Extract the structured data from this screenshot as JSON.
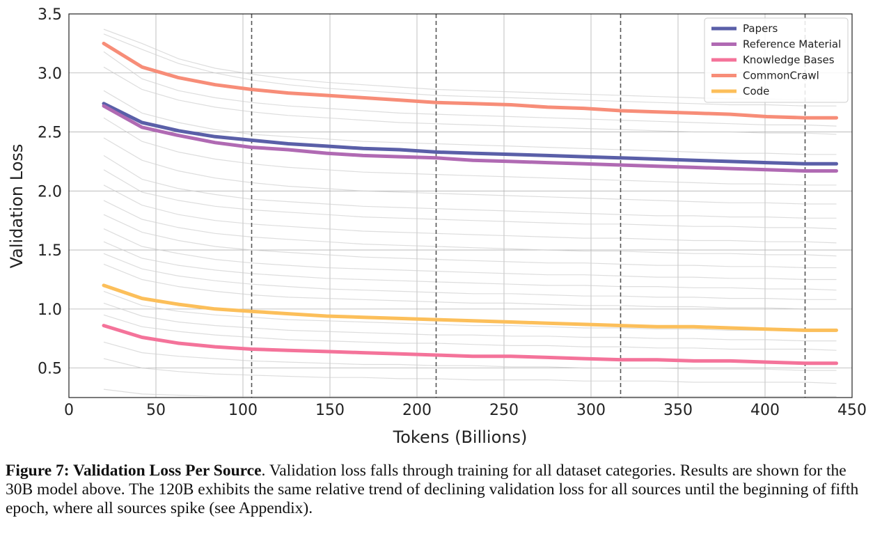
{
  "chart_data": {
    "type": "line",
    "xlabel": "Tokens (Billions)",
    "ylabel": "Validation Loss",
    "xlim": [
      0,
      450
    ],
    "ylim": [
      0.25,
      3.5
    ],
    "xticks": [
      "0",
      "50",
      "100",
      "150",
      "200",
      "250",
      "300",
      "350",
      "400",
      "450"
    ],
    "yticks": [
      "0.5",
      "1.0",
      "1.5",
      "2.0",
      "2.5",
      "3.0",
      "3.5"
    ],
    "grid": true,
    "legend_position": "top-right",
    "epoch_boundaries": [
      105,
      211,
      317,
      423
    ],
    "x": [
      20,
      42,
      63,
      84,
      105,
      126,
      148,
      169,
      190,
      211,
      232,
      254,
      275,
      296,
      317,
      338,
      359,
      380,
      401,
      423,
      441
    ],
    "series": [
      {
        "name": "Papers",
        "color": "#5a5fa8",
        "values": [
          2.74,
          2.58,
          2.51,
          2.46,
          2.43,
          2.4,
          2.38,
          2.36,
          2.35,
          2.33,
          2.32,
          2.31,
          2.3,
          2.29,
          2.28,
          2.27,
          2.26,
          2.25,
          2.24,
          2.23,
          2.23
        ]
      },
      {
        "name": "Reference Material",
        "color": "#b06ab3",
        "values": [
          2.72,
          2.54,
          2.47,
          2.41,
          2.37,
          2.35,
          2.32,
          2.3,
          2.29,
          2.28,
          2.26,
          2.25,
          2.24,
          2.23,
          2.22,
          2.21,
          2.2,
          2.19,
          2.18,
          2.17,
          2.17
        ]
      },
      {
        "name": "Knowledge Bases",
        "color": "#f4739a",
        "values": [
          0.86,
          0.76,
          0.71,
          0.68,
          0.66,
          0.65,
          0.64,
          0.63,
          0.62,
          0.61,
          0.6,
          0.6,
          0.59,
          0.58,
          0.57,
          0.57,
          0.56,
          0.56,
          0.55,
          0.54,
          0.54
        ]
      },
      {
        "name": "CommonCrawl",
        "color": "#f78d78",
        "values": [
          3.25,
          3.05,
          2.96,
          2.9,
          2.86,
          2.83,
          2.81,
          2.79,
          2.77,
          2.75,
          2.74,
          2.73,
          2.71,
          2.7,
          2.68,
          2.67,
          2.66,
          2.65,
          2.63,
          2.62,
          2.62
        ]
      },
      {
        "name": "Code",
        "color": "#fcbf5a",
        "values": [
          1.2,
          1.09,
          1.04,
          1.0,
          0.98,
          0.96,
          0.94,
          0.93,
          0.92,
          0.91,
          0.9,
          0.89,
          0.88,
          0.87,
          0.86,
          0.85,
          0.85,
          0.84,
          0.83,
          0.82,
          0.82
        ]
      }
    ],
    "background_series": [
      [
        3.37,
        3.25,
        3.12,
        3.04,
        2.99,
        2.95,
        2.92,
        2.9,
        2.88,
        2.86,
        2.85,
        2.84,
        2.83,
        2.82,
        2.81,
        2.8,
        2.79,
        2.78,
        2.78,
        2.77,
        2.77
      ],
      [
        3.33,
        3.2,
        3.08,
        3.0,
        2.94,
        2.9,
        2.87,
        2.85,
        2.83,
        2.81,
        2.8,
        2.79,
        2.78,
        2.77,
        2.76,
        2.75,
        2.74,
        2.73,
        2.73,
        2.72,
        2.72
      ],
      [
        3.18,
        2.95,
        2.85,
        2.79,
        2.75,
        2.72,
        2.7,
        2.68,
        2.66,
        2.65,
        2.64,
        2.63,
        2.62,
        2.61,
        2.6,
        2.59,
        2.58,
        2.57,
        2.56,
        2.56,
        2.55
      ],
      [
        3.05,
        2.86,
        2.77,
        2.71,
        2.67,
        2.64,
        2.62,
        2.6,
        2.58,
        2.57,
        2.56,
        2.55,
        2.54,
        2.53,
        2.52,
        2.51,
        2.5,
        2.5,
        2.49,
        2.49,
        2.48
      ],
      [
        2.85,
        2.66,
        2.58,
        2.52,
        2.48,
        2.46,
        2.44,
        2.42,
        2.41,
        2.4,
        2.39,
        2.38,
        2.37,
        2.36,
        2.35,
        2.34,
        2.33,
        2.32,
        2.32,
        2.31,
        2.31
      ],
      [
        2.62,
        2.42,
        2.33,
        2.27,
        2.23,
        2.2,
        2.18,
        2.16,
        2.15,
        2.14,
        2.13,
        2.12,
        2.11,
        2.1,
        2.09,
        2.08,
        2.07,
        2.06,
        2.06,
        2.05,
        2.05
      ],
      [
        2.45,
        2.26,
        2.17,
        2.11,
        2.07,
        2.04,
        2.02,
        2.0,
        1.99,
        1.98,
        1.97,
        1.96,
        1.95,
        1.94,
        1.93,
        1.92,
        1.91,
        1.9,
        1.9,
        1.89,
        1.89
      ],
      [
        2.3,
        2.1,
        2.02,
        1.97,
        1.93,
        1.91,
        1.89,
        1.87,
        1.86,
        1.85,
        1.84,
        1.83,
        1.82,
        1.81,
        1.8,
        1.79,
        1.79,
        1.78,
        1.78,
        1.77,
        1.77
      ],
      [
        2.18,
        1.99,
        1.92,
        1.87,
        1.84,
        1.82,
        1.8,
        1.78,
        1.77,
        1.76,
        1.75,
        1.74,
        1.73,
        1.72,
        1.72,
        1.71,
        1.7,
        1.7,
        1.69,
        1.69,
        1.68
      ],
      [
        2.05,
        1.88,
        1.8,
        1.75,
        1.72,
        1.7,
        1.68,
        1.66,
        1.65,
        1.64,
        1.63,
        1.62,
        1.61,
        1.6,
        1.6,
        1.59,
        1.58,
        1.58,
        1.57,
        1.57,
        1.56
      ],
      [
        1.92,
        1.76,
        1.69,
        1.64,
        1.61,
        1.59,
        1.57,
        1.55,
        1.54,
        1.53,
        1.52,
        1.51,
        1.5,
        1.49,
        1.49,
        1.48,
        1.47,
        1.47,
        1.46,
        1.46,
        1.45
      ],
      [
        1.8,
        1.65,
        1.58,
        1.53,
        1.5,
        1.48,
        1.46,
        1.44,
        1.43,
        1.42,
        1.41,
        1.4,
        1.39,
        1.39,
        1.38,
        1.37,
        1.37,
        1.36,
        1.36,
        1.35,
        1.35
      ],
      [
        1.68,
        1.53,
        1.47,
        1.42,
        1.39,
        1.37,
        1.35,
        1.34,
        1.33,
        1.32,
        1.31,
        1.3,
        1.29,
        1.29,
        1.28,
        1.27,
        1.27,
        1.26,
        1.26,
        1.25,
        1.25
      ],
      [
        1.57,
        1.43,
        1.37,
        1.33,
        1.3,
        1.28,
        1.26,
        1.25,
        1.24,
        1.23,
        1.22,
        1.21,
        1.2,
        1.2,
        1.19,
        1.19,
        1.18,
        1.18,
        1.17,
        1.17,
        1.16
      ],
      [
        1.47,
        1.34,
        1.28,
        1.24,
        1.21,
        1.19,
        1.17,
        1.16,
        1.15,
        1.14,
        1.13,
        1.13,
        1.12,
        1.11,
        1.11,
        1.1,
        1.1,
        1.09,
        1.09,
        1.08,
        1.08
      ],
      [
        1.38,
        1.25,
        1.19,
        1.15,
        1.12,
        1.1,
        1.09,
        1.08,
        1.07,
        1.06,
        1.05,
        1.05,
        1.04,
        1.03,
        1.03,
        1.02,
        1.02,
        1.01,
        1.01,
        1.0,
        1.0
      ],
      [
        1.15,
        1.03,
        0.98,
        0.95,
        0.93,
        0.91,
        0.9,
        0.89,
        0.88,
        0.87,
        0.86,
        0.86,
        0.85,
        0.84,
        0.84,
        0.83,
        0.83,
        0.82,
        0.82,
        0.81,
        0.81
      ],
      [
        1.05,
        0.94,
        0.89,
        0.86,
        0.84,
        0.82,
        0.81,
        0.8,
        0.79,
        0.78,
        0.78,
        0.77,
        0.77,
        0.76,
        0.76,
        0.75,
        0.75,
        0.74,
        0.74,
        0.73,
        0.73
      ],
      [
        0.95,
        0.85,
        0.81,
        0.78,
        0.76,
        0.74,
        0.73,
        0.72,
        0.71,
        0.71,
        0.7,
        0.69,
        0.69,
        0.68,
        0.68,
        0.67,
        0.67,
        0.66,
        0.66,
        0.66,
        0.65
      ],
      [
        0.72,
        0.63,
        0.6,
        0.58,
        0.56,
        0.55,
        0.54,
        0.53,
        0.53,
        0.52,
        0.52,
        0.51,
        0.51,
        0.5,
        0.5,
        0.5,
        0.49,
        0.49,
        0.49,
        0.48,
        0.48
      ],
      [
        0.58,
        0.5,
        0.47,
        0.45,
        0.44,
        0.43,
        0.42,
        0.42,
        0.41,
        0.41,
        0.4,
        0.4,
        0.4,
        0.39,
        0.39,
        0.39,
        0.38,
        0.38,
        0.38,
        0.38,
        0.37
      ],
      [
        0.32,
        0.28,
        0.27,
        0.26,
        0.26,
        0.26,
        0.26,
        0.26,
        0.26,
        0.26,
        0.26,
        0.26,
        0.26,
        0.26,
        0.26,
        0.26,
        0.26,
        0.26,
        0.26,
        0.26,
        0.26
      ]
    ]
  },
  "caption": {
    "bold": "Figure 7: Validation Loss Per Source",
    "text": ". Validation loss falls through training for all dataset categories. Results are shown for the 30B model above. The 120B exhibits the same relative trend of declining validation loss for all sources until the beginning of fifth epoch, where all sources spike (see Appendix)."
  }
}
